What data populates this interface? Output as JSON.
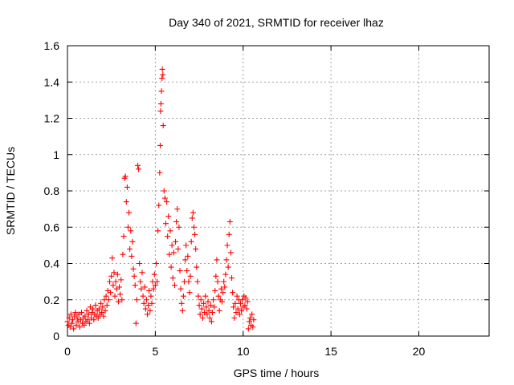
{
  "chart_data": {
    "type": "scatter",
    "title": "Day 340 of 2021, SRMTID for receiver lhaz",
    "xlabel": "GPS time / hours",
    "ylabel": "SRMTID / TECUs",
    "xlim": [
      0,
      24
    ],
    "ylim": [
      0,
      1.6
    ],
    "x_ticks": [
      0,
      5,
      10,
      15,
      20
    ],
    "x_tick_labels": [
      "0",
      "5",
      "10",
      "15",
      "20"
    ],
    "y_ticks": [
      0,
      0.2,
      0.4,
      0.6,
      0.8,
      1.0,
      1.2,
      1.4,
      1.6
    ],
    "y_tick_labels": [
      "0",
      "0.2",
      "0.4",
      "0.6",
      "0.8",
      "1",
      "1.2",
      "1.4",
      "1.6"
    ],
    "grid": true,
    "marker": "+",
    "color": "#ff0000",
    "series": [
      {
        "name": "SRMTID",
        "points": [
          [
            0.0,
            0.08
          ],
          [
            0.05,
            0.06
          ],
          [
            0.1,
            0.1
          ],
          [
            0.15,
            0.05
          ],
          [
            0.2,
            0.12
          ],
          [
            0.25,
            0.07
          ],
          [
            0.3,
            0.09
          ],
          [
            0.35,
            0.04
          ],
          [
            0.4,
            0.11
          ],
          [
            0.45,
            0.13
          ],
          [
            0.5,
            0.06
          ],
          [
            0.55,
            0.1
          ],
          [
            0.6,
            0.08
          ],
          [
            0.65,
            0.12
          ],
          [
            0.7,
            0.05
          ],
          [
            0.75,
            0.09
          ],
          [
            0.8,
            0.13
          ],
          [
            0.85,
            0.07
          ],
          [
            0.9,
            0.1
          ],
          [
            0.95,
            0.06
          ],
          [
            1.0,
            0.11
          ],
          [
            1.05,
            0.08
          ],
          [
            1.1,
            0.14
          ],
          [
            1.15,
            0.09
          ],
          [
            1.2,
            0.12
          ],
          [
            1.25,
            0.07
          ],
          [
            1.3,
            0.16
          ],
          [
            1.35,
            0.1
          ],
          [
            1.4,
            0.13
          ],
          [
            1.45,
            0.15
          ],
          [
            1.5,
            0.09
          ],
          [
            1.55,
            0.12
          ],
          [
            1.6,
            0.17
          ],
          [
            1.65,
            0.11
          ],
          [
            1.7,
            0.14
          ],
          [
            1.75,
            0.1
          ],
          [
            1.8,
            0.15
          ],
          [
            1.85,
            0.12
          ],
          [
            1.9,
            0.18
          ],
          [
            1.95,
            0.13
          ],
          [
            2.0,
            0.16
          ],
          [
            2.05,
            0.11
          ],
          [
            2.1,
            0.2
          ],
          [
            2.15,
            0.14
          ],
          [
            2.2,
            0.22
          ],
          [
            2.25,
            0.17
          ],
          [
            2.3,
            0.25
          ],
          [
            2.35,
            0.2
          ],
          [
            2.4,
            0.3
          ],
          [
            2.45,
            0.24
          ],
          [
            2.5,
            0.33
          ],
          [
            2.55,
            0.43
          ],
          [
            2.6,
            0.28
          ],
          [
            2.65,
            0.35
          ],
          [
            2.7,
            0.22
          ],
          [
            2.75,
            0.3
          ],
          [
            2.8,
            0.26
          ],
          [
            2.85,
            0.34
          ],
          [
            2.9,
            0.19
          ],
          [
            2.95,
            0.27
          ],
          [
            3.0,
            0.23
          ],
          [
            3.05,
            0.31
          ],
          [
            3.1,
            0.2
          ],
          [
            3.15,
            0.45
          ],
          [
            3.2,
            0.55
          ],
          [
            3.25,
            0.87
          ],
          [
            3.3,
            0.88
          ],
          [
            3.35,
            0.74
          ],
          [
            3.4,
            0.82
          ],
          [
            3.45,
            0.6
          ],
          [
            3.5,
            0.68
          ],
          [
            3.55,
            0.48
          ],
          [
            3.6,
            0.58
          ],
          [
            3.65,
            0.44
          ],
          [
            3.7,
            0.52
          ],
          [
            3.75,
            0.37
          ],
          [
            3.8,
            0.33
          ],
          [
            3.85,
            0.28
          ],
          [
            3.9,
            0.07
          ],
          [
            3.95,
            0.2
          ],
          [
            4.0,
            0.94
          ],
          [
            4.05,
            0.92
          ],
          [
            4.1,
            0.4
          ],
          [
            4.15,
            0.3
          ],
          [
            4.2,
            0.26
          ],
          [
            4.25,
            0.35
          ],
          [
            4.3,
            0.22
          ],
          [
            4.35,
            0.18
          ],
          [
            4.4,
            0.27
          ],
          [
            4.45,
            0.15
          ],
          [
            4.5,
            0.2
          ],
          [
            4.55,
            0.12
          ],
          [
            4.6,
            0.17
          ],
          [
            4.65,
            0.25
          ],
          [
            4.7,
            0.14
          ],
          [
            4.75,
            0.22
          ],
          [
            4.8,
            0.18
          ],
          [
            4.85,
            0.3
          ],
          [
            4.9,
            0.26
          ],
          [
            4.95,
            0.34
          ],
          [
            5.0,
            0.28
          ],
          [
            5.05,
            0.4
          ],
          [
            5.1,
            0.3
          ],
          [
            5.15,
            0.58
          ],
          [
            5.2,
            0.72
          ],
          [
            5.25,
            0.9
          ],
          [
            5.28,
            1.05
          ],
          [
            5.3,
            1.24
          ],
          [
            5.32,
            1.28
          ],
          [
            5.35,
            1.35
          ],
          [
            5.38,
            1.42
          ],
          [
            5.4,
            1.47
          ],
          [
            5.43,
            1.44
          ],
          [
            5.45,
            1.16
          ],
          [
            5.5,
            0.8
          ],
          [
            5.55,
            0.76
          ],
          [
            5.6,
            0.62
          ],
          [
            5.65,
            0.74
          ],
          [
            5.7,
            0.55
          ],
          [
            5.75,
            0.66
          ],
          [
            5.8,
            0.45
          ],
          [
            5.85,
            0.58
          ],
          [
            5.9,
            0.38
          ],
          [
            5.95,
            0.5
          ],
          [
            6.0,
            0.32
          ],
          [
            6.05,
            0.46
          ],
          [
            6.1,
            0.28
          ],
          [
            6.15,
            0.52
          ],
          [
            6.2,
            0.63
          ],
          [
            6.25,
            0.7
          ],
          [
            6.3,
            0.48
          ],
          [
            6.35,
            0.6
          ],
          [
            6.4,
            0.36
          ],
          [
            6.45,
            0.26
          ],
          [
            6.5,
            0.18
          ],
          [
            6.55,
            0.14
          ],
          [
            6.6,
            0.22
          ],
          [
            6.65,
            0.3
          ],
          [
            6.7,
            0.42
          ],
          [
            6.75,
            0.5
          ],
          [
            6.8,
            0.36
          ],
          [
            6.85,
            0.44
          ],
          [
            6.9,
            0.3
          ],
          [
            6.95,
            0.24
          ],
          [
            7.0,
            0.33
          ],
          [
            7.05,
            0.52
          ],
          [
            7.1,
            0.65
          ],
          [
            7.15,
            0.68
          ],
          [
            7.2,
            0.6
          ],
          [
            7.25,
            0.56
          ],
          [
            7.3,
            0.48
          ],
          [
            7.35,
            0.38
          ],
          [
            7.4,
            0.3
          ],
          [
            7.45,
            0.22
          ],
          [
            7.5,
            0.17
          ],
          [
            7.55,
            0.12
          ],
          [
            7.6,
            0.2
          ],
          [
            7.65,
            0.15
          ],
          [
            7.7,
            0.1
          ],
          [
            7.75,
            0.18
          ],
          [
            7.8,
            0.13
          ],
          [
            7.85,
            0.22
          ],
          [
            7.9,
            0.16
          ],
          [
            7.95,
            0.12
          ],
          [
            8.0,
            0.19
          ],
          [
            8.05,
            0.14
          ],
          [
            8.1,
            0.1
          ],
          [
            8.15,
            0.17
          ],
          [
            8.2,
            0.08
          ],
          [
            8.25,
            0.13
          ],
          [
            8.3,
            0.2
          ],
          [
            8.35,
            0.16
          ],
          [
            8.4,
            0.25
          ],
          [
            8.45,
            0.33
          ],
          [
            8.5,
            0.42
          ],
          [
            8.55,
            0.3
          ],
          [
            8.6,
            0.22
          ],
          [
            8.65,
            0.14
          ],
          [
            8.7,
            0.2
          ],
          [
            8.75,
            0.26
          ],
          [
            8.8,
            0.19
          ],
          [
            8.85,
            0.24
          ],
          [
            8.9,
            0.3
          ],
          [
            8.95,
            0.27
          ],
          [
            9.0,
            0.34
          ],
          [
            9.05,
            0.42
          ],
          [
            9.1,
            0.5
          ],
          [
            9.15,
            0.38
          ],
          [
            9.2,
            0.56
          ],
          [
            9.25,
            0.63
          ],
          [
            9.3,
            0.46
          ],
          [
            9.35,
            0.32
          ],
          [
            9.4,
            0.24
          ],
          [
            9.45,
            0.16
          ],
          [
            9.5,
            0.1
          ],
          [
            9.55,
            0.18
          ],
          [
            9.6,
            0.13
          ],
          [
            9.65,
            0.22
          ],
          [
            9.7,
            0.15
          ],
          [
            9.75,
            0.2
          ],
          [
            9.8,
            0.12
          ],
          [
            9.85,
            0.18
          ],
          [
            9.9,
            0.14
          ],
          [
            9.95,
            0.2
          ],
          [
            10.0,
            0.16
          ],
          [
            10.05,
            0.22
          ],
          [
            10.1,
            0.17
          ],
          [
            10.15,
            0.21
          ],
          [
            10.2,
            0.15
          ],
          [
            10.25,
            0.19
          ],
          [
            10.3,
            0.04
          ],
          [
            10.35,
            0.08
          ],
          [
            10.4,
            0.1
          ],
          [
            10.45,
            0.06
          ],
          [
            10.5,
            0.12
          ],
          [
            10.55,
            0.05
          ],
          [
            10.6,
            0.09
          ]
        ]
      }
    ]
  }
}
